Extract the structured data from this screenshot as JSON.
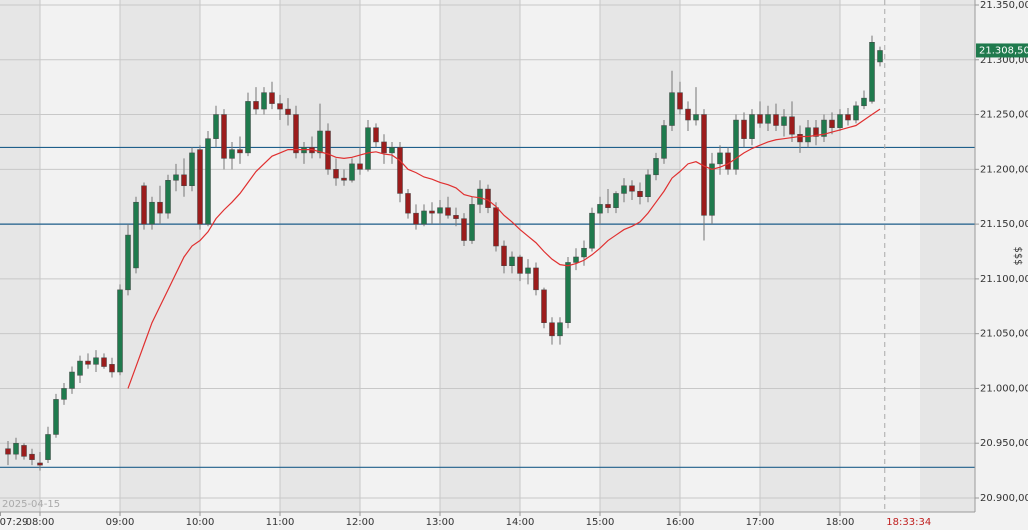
{
  "chart_data": {
    "type": "candlestick",
    "date_label": "2025-04-15",
    "axis_label": "$$$",
    "xlim": [
      450,
      1181.25
    ],
    "ylim": [
      20900,
      21350
    ],
    "yticks": [
      {
        "value": 20900,
        "label": "20.900,00"
      },
      {
        "value": 20950,
        "label": "20.950,00"
      },
      {
        "value": 21000,
        "label": "21.000,00"
      },
      {
        "value": 21050,
        "label": "21.050,00"
      },
      {
        "value": 21100,
        "label": "21.100,00"
      },
      {
        "value": 21150,
        "label": "21.150,00"
      },
      {
        "value": 21200,
        "label": "21.200,00"
      },
      {
        "value": 21250,
        "label": "21.250,00"
      },
      {
        "value": 21300,
        "label": "21.300,00"
      },
      {
        "value": 21350,
        "label": "21.350,00"
      }
    ],
    "xticks": [
      {
        "value": 449,
        "label": "07:29"
      },
      {
        "value": 480,
        "label": "08:00"
      },
      {
        "value": 540,
        "label": "09:00"
      },
      {
        "value": 600,
        "label": "10:00"
      },
      {
        "value": 660,
        "label": "11:00"
      },
      {
        "value": 720,
        "label": "12:00"
      },
      {
        "value": 780,
        "label": "13:00"
      },
      {
        "value": 840,
        "label": "14:00"
      },
      {
        "value": 900,
        "label": "15:00"
      },
      {
        "value": 960,
        "label": "16:00"
      },
      {
        "value": 1020,
        "label": "17:00"
      },
      {
        "value": 1080,
        "label": "18:00"
      }
    ],
    "grid": true,
    "now": {
      "value": 1113.57,
      "label": "18:33:34"
    },
    "last_price": {
      "value": 21308.5,
      "label": "21.308,50"
    },
    "up_color": "#1f7a4d",
    "down_color": "#9b1c1c",
    "level_color": "#1f5f8b",
    "levels": [
      21220,
      21150,
      20928
    ],
    "ma_color": "#e03030",
    "x": [
      456,
      462,
      468,
      474,
      480,
      486,
      492,
      498,
      504,
      510,
      516,
      522,
      528,
      534,
      540,
      546,
      552,
      558,
      564,
      570,
      576,
      582,
      588,
      594,
      600,
      606,
      612,
      618,
      624,
      630,
      636,
      642,
      648,
      654,
      660,
      666,
      672,
      678,
      684,
      690,
      696,
      702,
      708,
      714,
      720,
      726,
      732,
      738,
      744,
      750,
      756,
      762,
      768,
      774,
      780,
      786,
      792,
      798,
      804,
      810,
      816,
      822,
      828,
      834,
      840,
      846,
      852,
      858,
      864,
      870,
      876,
      882,
      888,
      894,
      900,
      906,
      912,
      918,
      924,
      930,
      936,
      942,
      948,
      954,
      960,
      966,
      972,
      978,
      984,
      990,
      996,
      1002,
      1008,
      1014,
      1020,
      1026,
      1032,
      1038,
      1044,
      1050,
      1056,
      1062,
      1068,
      1074,
      1080,
      1086,
      1092,
      1098,
      1104,
      1110
    ],
    "ohlc": [
      [
        20945,
        20952,
        20930,
        20940
      ],
      [
        20940,
        20955,
        20935,
        20950
      ],
      [
        20948,
        20950,
        20935,
        20938
      ],
      [
        20940,
        20945,
        20930,
        20935
      ],
      [
        20932,
        20942,
        20925,
        20930
      ],
      [
        20935,
        20965,
        20932,
        20958
      ],
      [
        20958,
        20995,
        20955,
        20990
      ],
      [
        20990,
        21005,
        20985,
        21000
      ],
      [
        21000,
        21020,
        20995,
        21015
      ],
      [
        21012,
        21030,
        21005,
        21025
      ],
      [
        21025,
        21032,
        21018,
        21022
      ],
      [
        21022,
        21035,
        21015,
        21028
      ],
      [
        21028,
        21032,
        21018,
        21020
      ],
      [
        21022,
        21028,
        21010,
        21015
      ],
      [
        21015,
        21095,
        21012,
        21090
      ],
      [
        21090,
        21150,
        21085,
        21140
      ],
      [
        21110,
        21175,
        21105,
        21170
      ],
      [
        21185,
        21188,
        21145,
        21150
      ],
      [
        21150,
        21175,
        21145,
        21170
      ],
      [
        21170,
        21185,
        21150,
        21160
      ],
      [
        21160,
        21195,
        21155,
        21190
      ],
      [
        21190,
        21205,
        21180,
        21195
      ],
      [
        21195,
        21210,
        21175,
        21185
      ],
      [
        21185,
        21220,
        21180,
        21215
      ],
      [
        21218,
        21222,
        21145,
        21150
      ],
      [
        21150,
        21235,
        21148,
        21228
      ],
      [
        21228,
        21258,
        21220,
        21250
      ],
      [
        21250,
        21255,
        21200,
        21210
      ],
      [
        21210,
        21225,
        21200,
        21218
      ],
      [
        21218,
        21230,
        21205,
        21215
      ],
      [
        21215,
        21270,
        21212,
        21262
      ],
      [
        21262,
        21275,
        21250,
        21255
      ],
      [
        21255,
        21275,
        21250,
        21270
      ],
      [
        21270,
        21280,
        21255,
        21260
      ],
      [
        21260,
        21268,
        21245,
        21255
      ],
      [
        21255,
        21265,
        21240,
        21250
      ],
      [
        21250,
        21258,
        21210,
        21215
      ],
      [
        21215,
        21225,
        21205,
        21220
      ],
      [
        21220,
        21230,
        21210,
        21215
      ],
      [
        21215,
        21260,
        21210,
        21235
      ],
      [
        21235,
        21242,
        21195,
        21200
      ],
      [
        21200,
        21210,
        21185,
        21192
      ],
      [
        21192,
        21200,
        21185,
        21190
      ],
      [
        21190,
        21210,
        21188,
        21205
      ],
      [
        21205,
        21220,
        21195,
        21200
      ],
      [
        21200,
        21245,
        21198,
        21238
      ],
      [
        21238,
        21242,
        21220,
        21225
      ],
      [
        21225,
        21232,
        21205,
        21215
      ],
      [
        21215,
        21225,
        21205,
        21220
      ],
      [
        21220,
        21225,
        21170,
        21178
      ],
      [
        21178,
        21182,
        21155,
        21160
      ],
      [
        21160,
        21168,
        21145,
        21150
      ],
      [
        21150,
        21168,
        21148,
        21162
      ],
      [
        21162,
        21170,
        21150,
        21160
      ],
      [
        21160,
        21172,
        21150,
        21165
      ],
      [
        21165,
        21175,
        21155,
        21158
      ],
      [
        21158,
        21165,
        21148,
        21155
      ],
      [
        21155,
        21160,
        21130,
        21135
      ],
      [
        21135,
        21175,
        21132,
        21168
      ],
      [
        21168,
        21190,
        21160,
        21182
      ],
      [
        21182,
        21186,
        21160,
        21165
      ],
      [
        21165,
        21170,
        21125,
        21130
      ],
      [
        21130,
        21135,
        21105,
        21112
      ],
      [
        21112,
        21125,
        21105,
        21120
      ],
      [
        21120,
        21122,
        21098,
        21105
      ],
      [
        21105,
        21118,
        21095,
        21110
      ],
      [
        21110,
        21115,
        21085,
        21090
      ],
      [
        21090,
        21092,
        21055,
        21060
      ],
      [
        21060,
        21065,
        21040,
        21048
      ],
      [
        21048,
        21065,
        21040,
        21060
      ],
      [
        21060,
        21120,
        21055,
        21115
      ],
      [
        21115,
        21128,
        21108,
        21120
      ],
      [
        21120,
        21135,
        21112,
        21128
      ],
      [
        21128,
        21165,
        21125,
        21160
      ],
      [
        21160,
        21175,
        21150,
        21168
      ],
      [
        21168,
        21182,
        21160,
        21165
      ],
      [
        21165,
        21180,
        21160,
        21178
      ],
      [
        21178,
        21192,
        21170,
        21185
      ],
      [
        21185,
        21190,
        21172,
        21180
      ],
      [
        21180,
        21188,
        21168,
        21175
      ],
      [
        21175,
        21200,
        21170,
        21195
      ],
      [
        21195,
        21215,
        21190,
        21210
      ],
      [
        21210,
        21245,
        21205,
        21240
      ],
      [
        21240,
        21290,
        21235,
        21270
      ],
      [
        21270,
        21280,
        21250,
        21255
      ],
      [
        21255,
        21262,
        21235,
        21245
      ],
      [
        21245,
        21275,
        21240,
        21250
      ],
      [
        21250,
        21255,
        21135,
        21158
      ],
      [
        21158,
        21215,
        21150,
        21205
      ],
      [
        21205,
        21222,
        21195,
        21215
      ],
      [
        21215,
        21220,
        21195,
        21200
      ],
      [
        21200,
        21250,
        21195,
        21245
      ],
      [
        21245,
        21252,
        21220,
        21228
      ],
      [
        21228,
        21255,
        21222,
        21250
      ],
      [
        21250,
        21262,
        21238,
        21242
      ],
      [
        21242,
        21258,
        21235,
        21250
      ],
      [
        21250,
        21260,
        21235,
        21240
      ],
      [
        21240,
        21255,
        21230,
        21248
      ],
      [
        21248,
        21262,
        21225,
        21232
      ],
      [
        21232,
        21240,
        21215,
        21225
      ],
      [
        21225,
        21245,
        21220,
        21238
      ],
      [
        21238,
        21245,
        21222,
        21230
      ],
      [
        21230,
        21250,
        21225,
        21245
      ],
      [
        21245,
        21252,
        21232,
        21238
      ],
      [
        21238,
        21255,
        21235,
        21250
      ],
      [
        21250,
        21256,
        21240,
        21245
      ],
      [
        21245,
        21262,
        21242,
        21258
      ],
      [
        21258,
        21272,
        21255,
        21265
      ],
      [
        21262,
        21322,
        21260,
        21316
      ],
      [
        21298,
        21312,
        21294,
        21308.5
      ]
    ],
    "ma": [
      null,
      null,
      null,
      null,
      null,
      null,
      null,
      null,
      null,
      null,
      null,
      null,
      null,
      null,
      null,
      21000,
      21020,
      21040,
      21060,
      21075,
      21090,
      21105,
      21120,
      21130,
      21135,
      21143,
      21155,
      21163,
      21170,
      21178,
      21188,
      21198,
      21205,
      21212,
      21215,
      21218,
      21218,
      21218,
      21218,
      21216,
      21214,
      21211,
      21210,
      21211,
      21213,
      21215,
      21216,
      21214,
      21213,
      21208,
      21200,
      21197,
      21193,
      21191,
      21188,
      21186,
      21183,
      21177,
      21175,
      21174,
      21172,
      21166,
      21158,
      21152,
      21145,
      21139,
      21133,
      21125,
      21118,
      21113,
      21112,
      21114,
      21117,
      21122,
      21128,
      21135,
      21140,
      21145,
      21148,
      21152,
      21160,
      21170,
      21180,
      21192,
      21198,
      21205,
      21207,
      21203,
      21200,
      21202,
      21205,
      21210,
      21215,
      21219,
      21222,
      21225,
      21227,
      21228,
      21229,
      21230,
      21230,
      21231,
      21232,
      21234,
      21236,
      21238,
      21240,
      21245,
      21250,
      21255
    ]
  }
}
